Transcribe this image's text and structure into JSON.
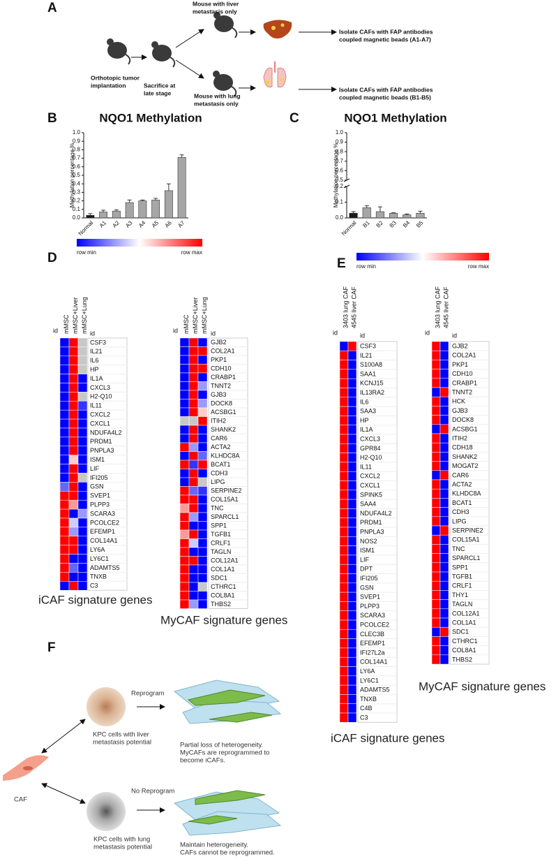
{
  "panel_a": {
    "label": "A",
    "implant": [
      "Orthotopic tumor",
      "implantation"
    ],
    "sacrifice": [
      "Sacrifice at",
      "late stage"
    ],
    "liver_mouse": [
      "Mouse with liver",
      "metastasis only"
    ],
    "lung_mouse": [
      "Mouse with lung",
      "metastasis only"
    ],
    "liver_isolate": [
      "Isolate CAFs with FAP antibodies",
      "coupled magnetic beads (A1-A7)"
    ],
    "lung_isolate": [
      "Isolate CAFs with FAP antibodies",
      "coupled magnetic beads (B1-B5)"
    ]
  },
  "chart_data": [
    {
      "type": "bar",
      "label": "B",
      "title": "NQO1 Methylation",
      "y_label": "Methylation percentage %",
      "categories": [
        "Normal",
        "A1",
        "A2",
        "A3",
        "A4",
        "A5",
        "A6",
        "A7"
      ],
      "values": [
        0.03,
        0.07,
        0.08,
        0.18,
        0.2,
        0.21,
        0.32,
        0.71
      ],
      "errors": [
        0.02,
        0.02,
        0.015,
        0.03,
        0.01,
        0.02,
        0.08,
        0.03
      ],
      "colors": [
        "#1a1a1a",
        "#a6a6a6",
        "#a6a6a6",
        "#a6a6a6",
        "#a6a6a6",
        "#a6a6a6",
        "#a6a6a6",
        "#a6a6a6"
      ],
      "ylim": [
        0,
        1
      ],
      "yticks": [
        {
          "value": 0,
          "label": "0.0"
        },
        0.1,
        0.2,
        0.3,
        0.4,
        0.5,
        0.6,
        0.7,
        0.8,
        0.9,
        {
          "value": 1,
          "label": "1.0"
        }
      ]
    },
    {
      "type": "bar",
      "label": "C",
      "title": "NQO1 Methylation",
      "y_label": "Methylation percentage %",
      "categories": [
        "Normal",
        "B1",
        "B2",
        "B3",
        "B4",
        "B5"
      ],
      "values": [
        0.03,
        0.065,
        0.04,
        0.03,
        0.02,
        0.03
      ],
      "errors": [
        0.01,
        0.012,
        0.03,
        0.003,
        0.005,
        0.013
      ],
      "colors": [
        "#1a1a1a",
        "#a6a6a6",
        "#a6a6a6",
        "#a6a6a6",
        "#a6a6a6",
        "#a6a6a6"
      ],
      "ylim": [
        0,
        1
      ],
      "ybreak": [
        0.2,
        0.5
      ],
      "yticks": [
        {
          "value": 0,
          "label": "0.0"
        },
        0.1,
        0.2,
        0.5,
        0.6,
        0.7,
        0.8,
        0.9,
        {
          "value": 1,
          "label": "1.0"
        }
      ]
    }
  ],
  "panel_d": {
    "label": "D",
    "colorbar": {
      "min_label": "row min",
      "max_label": "row max",
      "colors": [
        "#0000ff",
        "#ffffff",
        "#ff0000"
      ]
    },
    "heatmaps": [
      {
        "column_header": "id",
        "row_header": "id",
        "columns": [
          "mMSC",
          "mMSC+Liver",
          "mMSC+Lung"
        ],
        "caption": "iCAF signature genes",
        "genes": [
          "CSF3",
          "IL21",
          "IL6",
          "HP",
          "IL1A",
          "CXCL3",
          "H2-Q10",
          "IL11",
          "CXCL2",
          "CXCL1",
          "NDUFA4L2",
          "PRDM1",
          "PNPLA3",
          "ISM1",
          "LIF",
          "IFI205",
          "GSN",
          "SVEP1",
          "PLPP3",
          "SCARA3",
          "PCOLCE2",
          "EFEMP1",
          "COL14A1",
          "LY6A",
          "LY6C1",
          "ADAMTS5",
          "TNXB",
          "C3"
        ],
        "values": [
          [
            0,
            1,
            null
          ],
          [
            0,
            1,
            null
          ],
          [
            0,
            1,
            null
          ],
          [
            0,
            1,
            null
          ],
          [
            0,
            1,
            0
          ],
          [
            0,
            1,
            0
          ],
          [
            0,
            1,
            null
          ],
          [
            0,
            1,
            0.1
          ],
          [
            0,
            1,
            0
          ],
          [
            0,
            1,
            0
          ],
          [
            0,
            1,
            0
          ],
          [
            0,
            1,
            0
          ],
          [
            0,
            1,
            0
          ],
          [
            0,
            0.6,
            0
          ],
          [
            0,
            1,
            0
          ],
          [
            0,
            1,
            null
          ],
          [
            0.2,
            1,
            0
          ],
          [
            1,
            1,
            0
          ],
          [
            1,
            0.7,
            0
          ],
          [
            1,
            0,
            0.3
          ],
          [
            1,
            0.4,
            0
          ],
          [
            1,
            0.3,
            0
          ],
          [
            1,
            1,
            0
          ],
          [
            1,
            1,
            0
          ],
          [
            1,
            0,
            0
          ],
          [
            1,
            0.2,
            0
          ],
          [
            1,
            0,
            0
          ],
          [
            0,
            1,
            0
          ]
        ]
      },
      {
        "column_header": "id",
        "row_header": "id",
        "columns": [
          "mMSC",
          "mMSC+Liver",
          "mMSC+Lung"
        ],
        "caption": "MyCAF signature genes",
        "genes": [
          "GJB2",
          "COL2A1",
          "PKP1",
          "CDH10",
          "CRABP1",
          "TNNT2",
          "GJB3",
          "DOCK8",
          "ACSBG1",
          "ITIH2",
          "SHANK2",
          "CAR6",
          "ACTA2",
          "KLHDC8A",
          "BCAT1",
          "CDH3",
          "LIPG",
          "SERPINE2",
          "COL15A1",
          "TNC",
          "SPARCL1",
          "SPP1",
          "TGFB1",
          "CRLF1",
          "TAGLN",
          "COL12A1",
          "COL1A1",
          "SDC1",
          "CTHRC1",
          "COL8A1",
          "THBS2"
        ],
        "values": [
          [
            0,
            1,
            0
          ],
          [
            0,
            1,
            1
          ],
          [
            0,
            1,
            0
          ],
          [
            0,
            1,
            1
          ],
          [
            0,
            1,
            0
          ],
          [
            0,
            1,
            0.3
          ],
          [
            0,
            1,
            0
          ],
          [
            0,
            1,
            0.3
          ],
          [
            0,
            1,
            0.6
          ],
          [
            null,
            null,
            1
          ],
          [
            0,
            1,
            0
          ],
          [
            0,
            1,
            0
          ],
          [
            1,
            0.3,
            0
          ],
          [
            0,
            1,
            0.2
          ],
          [
            1,
            0.1,
            1
          ],
          [
            0,
            1,
            0
          ],
          [
            0,
            1,
            null
          ],
          [
            1,
            0.2,
            0.1
          ],
          [
            1,
            1,
            0
          ],
          [
            0.7,
            1,
            0
          ],
          [
            1,
            0.3,
            0
          ],
          [
            1,
            0,
            0
          ],
          [
            0.7,
            1,
            0
          ],
          [
            1,
            0.4,
            0
          ],
          [
            1,
            0,
            0
          ],
          [
            1,
            1,
            0
          ],
          [
            1,
            0,
            0
          ],
          [
            1,
            0,
            0
          ],
          [
            1,
            0,
            null
          ],
          [
            1,
            0,
            0
          ],
          [
            1,
            0.3,
            0
          ]
        ]
      }
    ]
  },
  "panel_e": {
    "label": "E",
    "colorbar": {
      "min_label": "row min",
      "max_label": "row max",
      "colors": [
        "#0000ff",
        "#ffffff",
        "#ff0000"
      ]
    },
    "heatmaps": [
      {
        "column_header": "id",
        "row_header": "id",
        "columns": [
          "3403 lung CAF",
          "4545 liver CAF"
        ],
        "caption": "iCAF signature genes",
        "genes": [
          "CSF3",
          "IL21",
          "S100A8",
          "SAA1",
          "KCNJ15",
          "IL13RA2",
          "IL6",
          "SAA3",
          "HP",
          "IL1A",
          "CXCL3",
          "GPR84",
          "H2-Q10",
          "IL11",
          "CXCL2",
          "CXCL1",
          "SPINK5",
          "SAA4",
          "NDUFA4L2",
          "PRDM1",
          "PNPLA3",
          "NOS2",
          "ISM1",
          "LIF",
          "DPT",
          "IFI205",
          "GSN",
          "SVEP1",
          "PLPP3",
          "SCARA3",
          "PCOLCE2",
          "CLEC3B",
          "EFEMP1",
          "IFI27L2a",
          "COL14A1",
          "LY6A",
          "LY6C1",
          "ADAMTS5",
          "TNXB",
          "C4B",
          "C3"
        ],
        "values": [
          [
            0,
            1
          ],
          [
            1,
            0
          ],
          [
            1,
            0
          ],
          [
            1,
            0
          ],
          [
            1,
            0
          ],
          [
            1,
            0
          ],
          [
            1,
            0
          ],
          [
            1,
            0
          ],
          [
            1,
            0
          ],
          [
            1,
            0
          ],
          [
            1,
            0
          ],
          [
            1,
            0
          ],
          [
            1,
            0
          ],
          [
            1,
            0
          ],
          [
            1,
            0
          ],
          [
            1,
            0
          ],
          [
            1,
            0
          ],
          [
            1,
            0
          ],
          [
            1,
            0
          ],
          [
            1,
            0
          ],
          [
            1,
            0
          ],
          [
            1,
            0
          ],
          [
            1,
            0
          ],
          [
            1,
            0
          ],
          [
            1,
            0
          ],
          [
            1,
            0
          ],
          [
            1,
            0
          ],
          [
            1,
            0
          ],
          [
            1,
            0
          ],
          [
            1,
            0
          ],
          [
            1,
            0
          ],
          [
            1,
            0
          ],
          [
            1,
            0
          ],
          [
            1,
            0
          ],
          [
            1,
            0
          ],
          [
            1,
            0
          ],
          [
            1,
            0
          ],
          [
            1,
            0
          ],
          [
            1,
            0
          ],
          [
            1,
            0
          ],
          [
            1,
            0
          ]
        ]
      },
      {
        "column_header": "id",
        "row_header": "id",
        "columns": [
          "3403 lung CAF",
          "4545 liver CAF"
        ],
        "caption": "MyCAF signature genes",
        "genes": [
          "GJB2",
          "COL2A1",
          "PKP1",
          "CDH10",
          "CRABP1",
          "TNNT2",
          "HCK",
          "GJB3",
          "DOCK8",
          "ACSBG1",
          "ITIH2",
          "CDH18",
          "SHANK2",
          "MOGAT2",
          "CAR6",
          "ACTA2",
          "KLHDC8A",
          "BCAT1",
          "CDH3",
          "LIPG",
          "SERPINE2",
          "COL15A1",
          "TNC",
          "SPARCL1",
          "SPP1",
          "TGFB1",
          "CRLF1",
          "THY1",
          "TAGLN",
          "COL12A1",
          "COL1A1",
          "SDC1",
          "CTHRC1",
          "COL8A1",
          "THBS2"
        ],
        "values": [
          [
            1,
            0
          ],
          [
            1,
            0
          ],
          [
            1,
            0
          ],
          [
            1,
            0
          ],
          [
            1,
            0
          ],
          [
            0,
            1
          ],
          [
            1,
            0
          ],
          [
            1,
            0
          ],
          [
            1,
            0
          ],
          [
            0,
            1
          ],
          [
            1,
            0
          ],
          [
            1,
            0
          ],
          [
            1,
            0
          ],
          [
            1,
            0
          ],
          [
            0,
            1
          ],
          [
            1,
            0
          ],
          [
            1,
            0
          ],
          [
            1,
            0
          ],
          [
            1,
            0
          ],
          [
            1,
            0
          ],
          [
            0,
            1
          ],
          [
            1,
            0
          ],
          [
            1,
            0
          ],
          [
            1,
            0
          ],
          [
            1,
            0
          ],
          [
            1,
            0
          ],
          [
            1,
            0
          ],
          [
            1,
            0
          ],
          [
            1,
            0
          ],
          [
            1,
            0
          ],
          [
            1,
            0
          ],
          [
            0,
            1
          ],
          [
            1,
            0
          ],
          [
            1,
            0
          ],
          [
            1,
            0
          ]
        ]
      }
    ]
  },
  "panel_f": {
    "label": "F",
    "caf": "CAF",
    "reprogram": "Reprogram",
    "liver_cells": [
      "KPC cells with liver",
      "metastasis potential"
    ],
    "liver_outcome": [
      "Partial loss of heterogeneity.",
      "MyCAFs are reprogrammed to",
      "become iCAFs."
    ],
    "no_reprogram": "No Reprogram",
    "lung_cells": [
      "KPC cells with lung",
      "metastasis potential"
    ],
    "lung_outcome": [
      "Maintain heterogeneity.",
      "CAFs cannot be reprogrammed."
    ]
  }
}
